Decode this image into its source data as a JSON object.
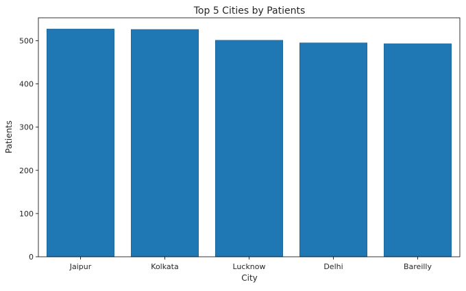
{
  "chart_data": {
    "type": "bar",
    "title": "Top 5 Cities by Patients",
    "xlabel": "City",
    "ylabel": "Patients",
    "categories": [
      "Jaipur",
      "Kolkata",
      "Lucknow",
      "Delhi",
      "Bareilly"
    ],
    "values": [
      527,
      526,
      501,
      495,
      493
    ],
    "ylim": [
      0,
      553
    ],
    "yticks": [
      0,
      100,
      200,
      300,
      400,
      500
    ],
    "bar_color": "#1f77b4",
    "grid": false,
    "legend": "none"
  }
}
